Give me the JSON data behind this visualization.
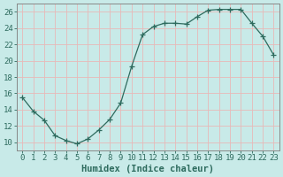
{
  "x": [
    0,
    1,
    2,
    3,
    4,
    5,
    6,
    7,
    8,
    9,
    10,
    11,
    12,
    13,
    14,
    15,
    16,
    17,
    18,
    19,
    20,
    21,
    22,
    23
  ],
  "y": [
    15.5,
    13.8,
    12.7,
    10.8,
    10.2,
    9.8,
    10.4,
    11.5,
    12.8,
    14.8,
    19.3,
    23.2,
    24.2,
    24.6,
    24.6,
    24.5,
    25.4,
    26.2,
    26.3,
    26.3,
    26.3,
    24.6,
    23.0,
    20.7
  ],
  "line_color": "#2e6b5e",
  "marker": "+",
  "marker_size": 4,
  "bg_color": "#c8eae8",
  "grid_color": "#e8b8b8",
  "xlabel": "Humidex (Indice chaleur)",
  "xlim": [
    -0.5,
    23.5
  ],
  "ylim": [
    9,
    27
  ],
  "yticks": [
    10,
    12,
    14,
    16,
    18,
    20,
    22,
    24,
    26
  ],
  "xticks": [
    0,
    1,
    2,
    3,
    4,
    5,
    6,
    7,
    8,
    9,
    10,
    11,
    12,
    13,
    14,
    15,
    16,
    17,
    18,
    19,
    20,
    21,
    22,
    23
  ],
  "xlabel_fontsize": 7.5,
  "tick_fontsize": 6.5
}
